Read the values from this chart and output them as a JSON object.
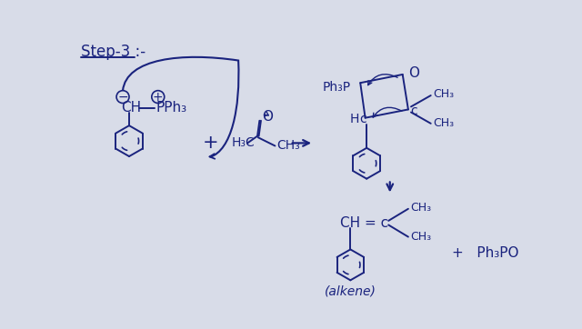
{
  "bg_color": "#d8dce8",
  "ink_color": "#1a237e",
  "fig_width": 6.4,
  "fig_height": 3.62,
  "dpi": 100,
  "step_label": "Step-3 :-",
  "alkene_label": "(alkene)",
  "plus_ph3po": "+   Ph₃PO"
}
